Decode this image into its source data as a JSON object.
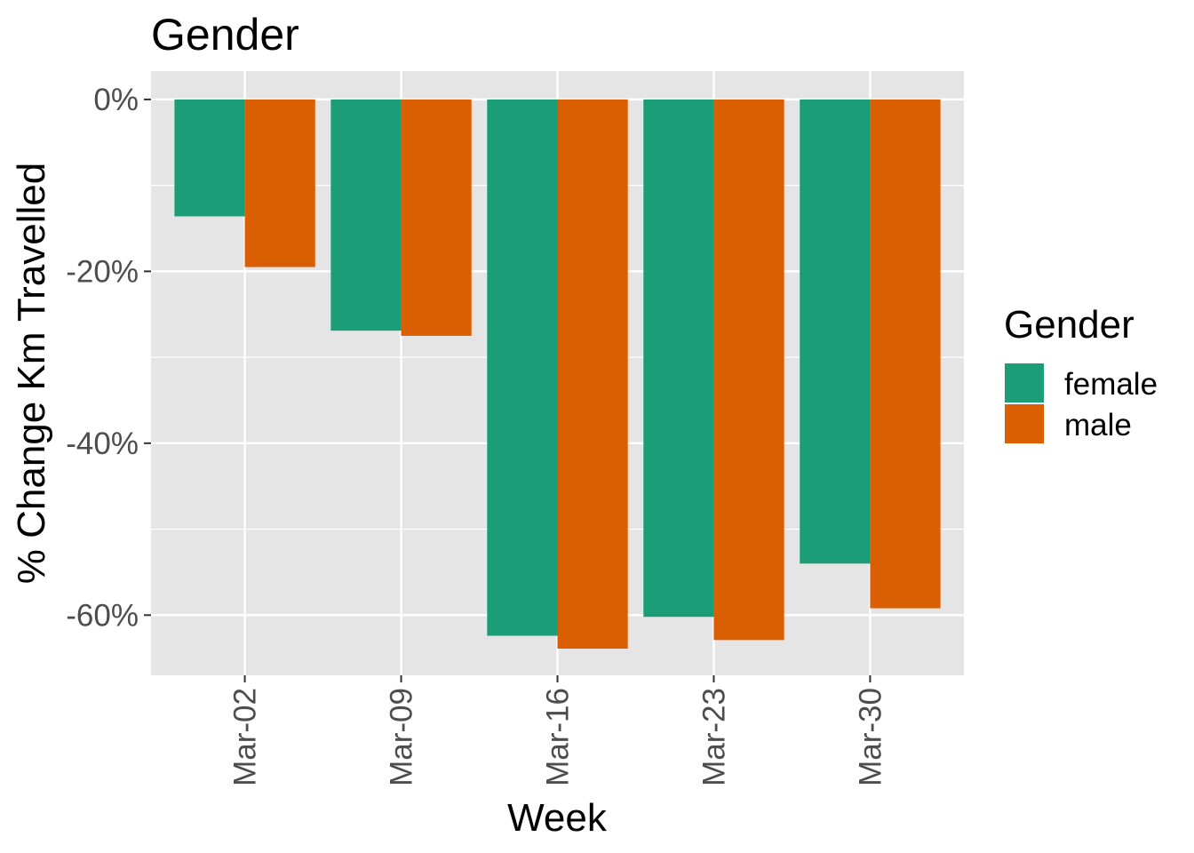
{
  "chart_data": {
    "type": "bar",
    "title": "Gender",
    "xlabel": "Week",
    "ylabel": "% Change Km Travelled",
    "categories": [
      "Mar-02",
      "Mar-09",
      "Mar-16",
      "Mar-23",
      "Mar-30"
    ],
    "series": [
      {
        "name": "female",
        "color": "#1B9E77",
        "values": [
          -13.6,
          -26.9,
          -62.4,
          -60.2,
          -54.0
        ]
      },
      {
        "name": "male",
        "color": "#D95F02",
        "values": [
          -19.5,
          -27.5,
          -63.9,
          -62.9,
          -59.2
        ]
      }
    ],
    "ylim": [
      -67,
      3.3
    ],
    "yticks": [
      0,
      -20,
      -40,
      -60
    ],
    "ytick_labels": [
      "0%",
      "-20%",
      "-40%",
      "-60%"
    ],
    "grid": true,
    "legend": {
      "title": "Gender",
      "position": "right"
    },
    "colors": {
      "panel_background": "#E5E5E5",
      "grid": "#FFFFFF",
      "tick_text": "#4D4D4D"
    }
  }
}
